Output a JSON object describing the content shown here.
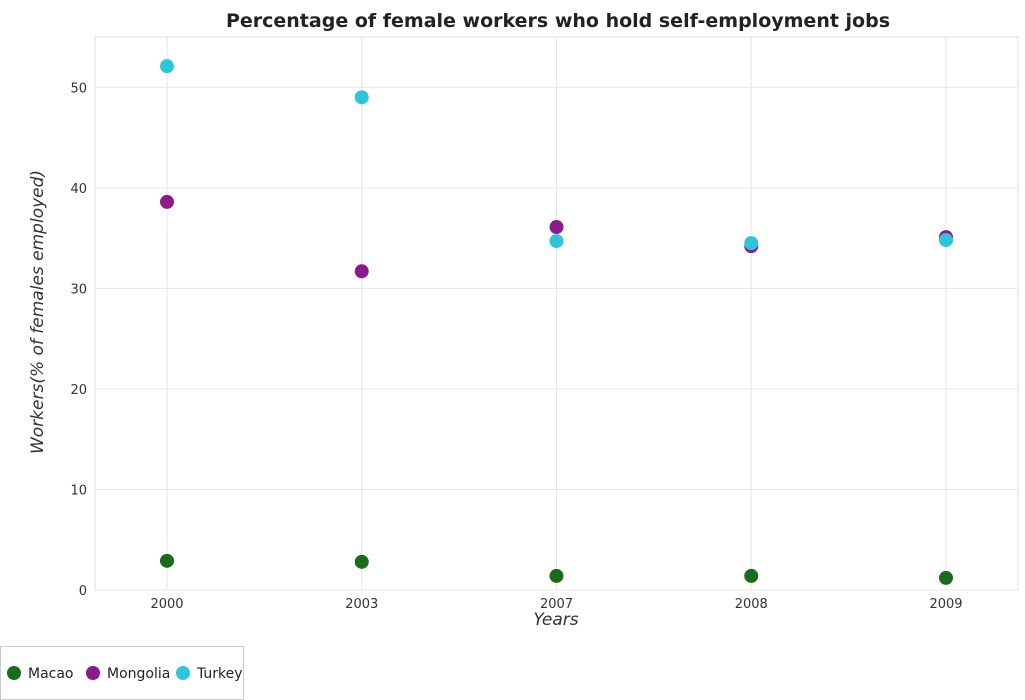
{
  "chart_data": {
    "type": "scatter",
    "title": "Percentage of female workers who hold self-employment jobs",
    "xlabel": "Years",
    "ylabel": "Workers(% of females employed)",
    "categories": [
      "2000",
      "2003",
      "2007",
      "2008",
      "2009"
    ],
    "ylim": [
      0,
      55
    ],
    "yticks": [
      0,
      10,
      20,
      30,
      40,
      50
    ],
    "grid": true,
    "legend_position": "bottom-left",
    "series": [
      {
        "name": "Macao",
        "color": "#1a6b1a",
        "values": [
          2.9,
          2.8,
          1.4,
          1.4,
          1.2
        ]
      },
      {
        "name": "Mongolia",
        "color": "#8b1a8b",
        "values": [
          38.6,
          31.7,
          36.1,
          34.2,
          35.1
        ]
      },
      {
        "name": "Turkey",
        "color": "#2ec4dc",
        "values": [
          52.1,
          49.0,
          34.7,
          34.5,
          34.8
        ]
      }
    ]
  }
}
